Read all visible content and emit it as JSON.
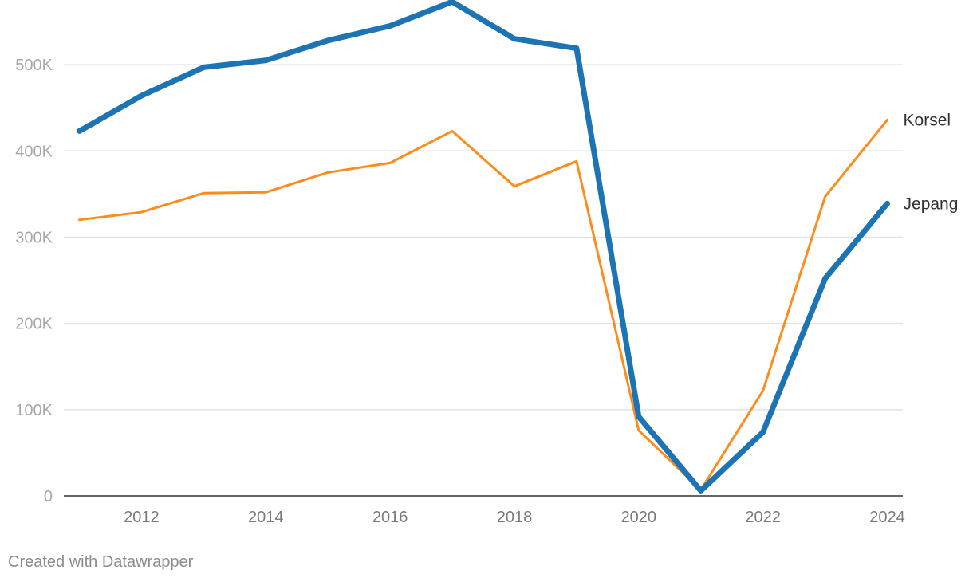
{
  "footer": "Created with Datawrapper",
  "chart_data": {
    "type": "line",
    "title": "",
    "xlabel": "",
    "ylabel": "",
    "x": [
      2011,
      2012,
      2013,
      2014,
      2015,
      2016,
      2017,
      2018,
      2019,
      2020,
      2021,
      2022,
      2023,
      2024
    ],
    "x_ticks": [
      "2012",
      "2014",
      "2016",
      "2018",
      "2020",
      "2022",
      "2024"
    ],
    "y_ticks": [
      "0",
      "100K",
      "200K",
      "300K",
      "400K",
      "500K"
    ],
    "ylim": [
      0,
      575000
    ],
    "xlim": [
      2010.75,
      2024.25
    ],
    "grid": true,
    "legend": "direct labels at line ends (right)",
    "series": [
      {
        "name": "Jepang",
        "color": "#1d74b4",
        "values": [
          423000,
          464000,
          497000,
          505000,
          528000,
          545000,
          573000,
          530000,
          519000,
          92000,
          6000,
          74000,
          252000,
          339000
        ]
      },
      {
        "name": "Korsel",
        "color": "#ff8c1a",
        "values": [
          320000,
          329000,
          351000,
          352000,
          375000,
          386000,
          423000,
          359000,
          388000,
          76000,
          7000,
          122000,
          347000,
          436000
        ]
      }
    ]
  }
}
